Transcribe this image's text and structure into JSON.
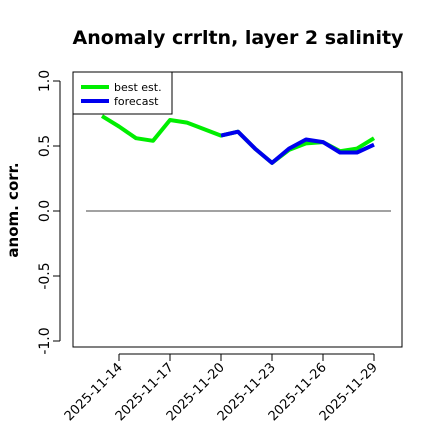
{
  "chart_data": {
    "type": "line",
    "title": "Anomaly crrltn, layer 2 salinity",
    "xlabel": "",
    "ylabel": "anom. corr.",
    "ylim": [
      -1.0,
      1.0
    ],
    "xlim": [
      "2025-11-11",
      "2025-11-30"
    ],
    "grid": false,
    "legend_position": "top-left",
    "reference_line_y": 0.0,
    "x_ticks": [
      "2025-11-14",
      "2025-11-17",
      "2025-11-20",
      "2025-11-23",
      "2025-11-26",
      "2025-11-29"
    ],
    "highlight_tick": "2025-11-20",
    "y_ticks": [
      "-1.0",
      "-0.5",
      "0.0",
      "0.5",
      "1.0"
    ],
    "y_tick_values": [
      -1.0,
      -0.5,
      0.0,
      0.5,
      1.0
    ],
    "series": [
      {
        "name": "best est.",
        "color": "#00ee00",
        "x": [
          "2025-11-13",
          "2025-11-14",
          "2025-11-15",
          "2025-11-16",
          "2025-11-17",
          "2025-11-18",
          "2025-11-19",
          "2025-11-20",
          "2025-11-21",
          "2025-11-22",
          "2025-11-23",
          "2025-11-24",
          "2025-11-25",
          "2025-11-26",
          "2025-11-27",
          "2025-11-28",
          "2025-11-29"
        ],
        "values": [
          0.73,
          0.65,
          0.56,
          0.54,
          0.7,
          0.68,
          0.63,
          0.58,
          0.61,
          0.48,
          0.37,
          0.47,
          0.52,
          0.53,
          0.46,
          0.48,
          0.56
        ]
      },
      {
        "name": "forecast",
        "color": "#0000ee",
        "x": [
          "2025-11-20",
          "2025-11-21",
          "2025-11-22",
          "2025-11-23",
          "2025-11-24",
          "2025-11-25",
          "2025-11-26",
          "2025-11-27",
          "2025-11-28",
          "2025-11-29"
        ],
        "values": [
          0.58,
          0.61,
          0.48,
          0.37,
          0.48,
          0.55,
          0.53,
          0.45,
          0.45,
          0.51
        ]
      }
    ]
  }
}
